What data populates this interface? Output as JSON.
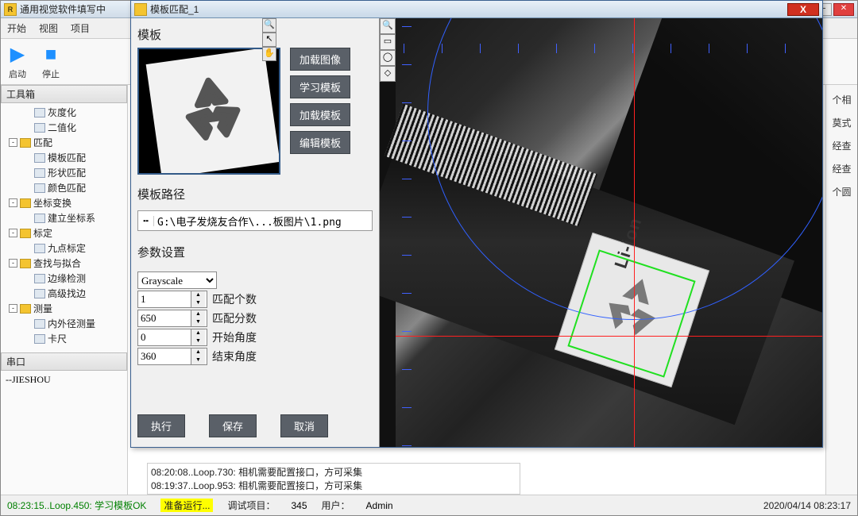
{
  "main_window": {
    "title": "通用视觉软件填写中",
    "menus": [
      "开始",
      "视图",
      "项目"
    ],
    "toolbar": {
      "start": {
        "icon": "▶",
        "label": "启动",
        "color": "#1e90ff"
      },
      "stop": {
        "icon": "■",
        "label": "停止",
        "color": "#1e90ff"
      }
    }
  },
  "toolbox": {
    "header": "工具箱",
    "tree": [
      {
        "indent": 1,
        "toggle": "",
        "icon": "leaf",
        "label": "灰度化"
      },
      {
        "indent": 1,
        "toggle": "",
        "icon": "leaf",
        "label": "二值化"
      },
      {
        "indent": 0,
        "toggle": "-",
        "icon": "fold",
        "label": "匹配"
      },
      {
        "indent": 1,
        "toggle": "",
        "icon": "leaf",
        "label": "模板匹配"
      },
      {
        "indent": 1,
        "toggle": "",
        "icon": "leaf",
        "label": "形状匹配"
      },
      {
        "indent": 1,
        "toggle": "",
        "icon": "leaf",
        "label": "颜色匹配"
      },
      {
        "indent": 0,
        "toggle": "-",
        "icon": "fold",
        "label": "坐标变换"
      },
      {
        "indent": 1,
        "toggle": "",
        "icon": "leaf",
        "label": "建立坐标系"
      },
      {
        "indent": 0,
        "toggle": "-",
        "icon": "fold",
        "label": "标定"
      },
      {
        "indent": 1,
        "toggle": "",
        "icon": "leaf",
        "label": "九点标定"
      },
      {
        "indent": 0,
        "toggle": "-",
        "icon": "fold",
        "label": "查找与拟合"
      },
      {
        "indent": 1,
        "toggle": "",
        "icon": "leaf",
        "label": "边缘检测"
      },
      {
        "indent": 1,
        "toggle": "",
        "icon": "leaf",
        "label": "高级找边"
      },
      {
        "indent": 0,
        "toggle": "-",
        "icon": "fold",
        "label": "测量"
      },
      {
        "indent": 1,
        "toggle": "",
        "icon": "leaf",
        "label": "内外径测量"
      },
      {
        "indent": 1,
        "toggle": "",
        "icon": "leaf",
        "label": "卡尺"
      }
    ]
  },
  "serial": {
    "header": "串口",
    "line": "--JIESHOU"
  },
  "right_strip": [
    "个相",
    "莫式",
    "经查",
    "经查",
    "个圆"
  ],
  "log_lines": [
    "08:20:08..Loop.730:      相机需要配置接口，方可采集",
    "08:19:37..Loop.953:      相机需要配置接口，方可采集"
  ],
  "status": {
    "left": "08:23:15..Loop.450: 学习模板OK",
    "ready": "准备运行...",
    "project_label": "调试项目：",
    "project_value": "345",
    "user_label": "用户：",
    "user_value": "Admin",
    "timestamp": "2020/04/14 08:23:17"
  },
  "dialog": {
    "title": "模板匹配_1",
    "section_template": "模板",
    "buttons": {
      "load_image": "加载图像",
      "learn": "学习模板",
      "load_tpl": "加载模板",
      "edit": "编辑模板"
    },
    "section_path": "模板路径",
    "path": "G:\\电子发烧友合作\\...板图片\\1.png",
    "section_params": "参数设置",
    "params": {
      "mode": "Grayscale",
      "rows": [
        {
          "value": "1",
          "label": "匹配个数"
        },
        {
          "value": "650",
          "label": "匹配分数"
        },
        {
          "value": "0",
          "label": "开始角度"
        },
        {
          "value": "360",
          "label": "结束角度"
        }
      ]
    },
    "actions": {
      "run": "执行",
      "save": "保存",
      "cancel": "取消"
    },
    "viewer": {
      "crosshair_color": "#ff2020",
      "circle_color": "#3060ff",
      "match_box_color": "#20e020",
      "liion_text": "Li-ion"
    }
  }
}
